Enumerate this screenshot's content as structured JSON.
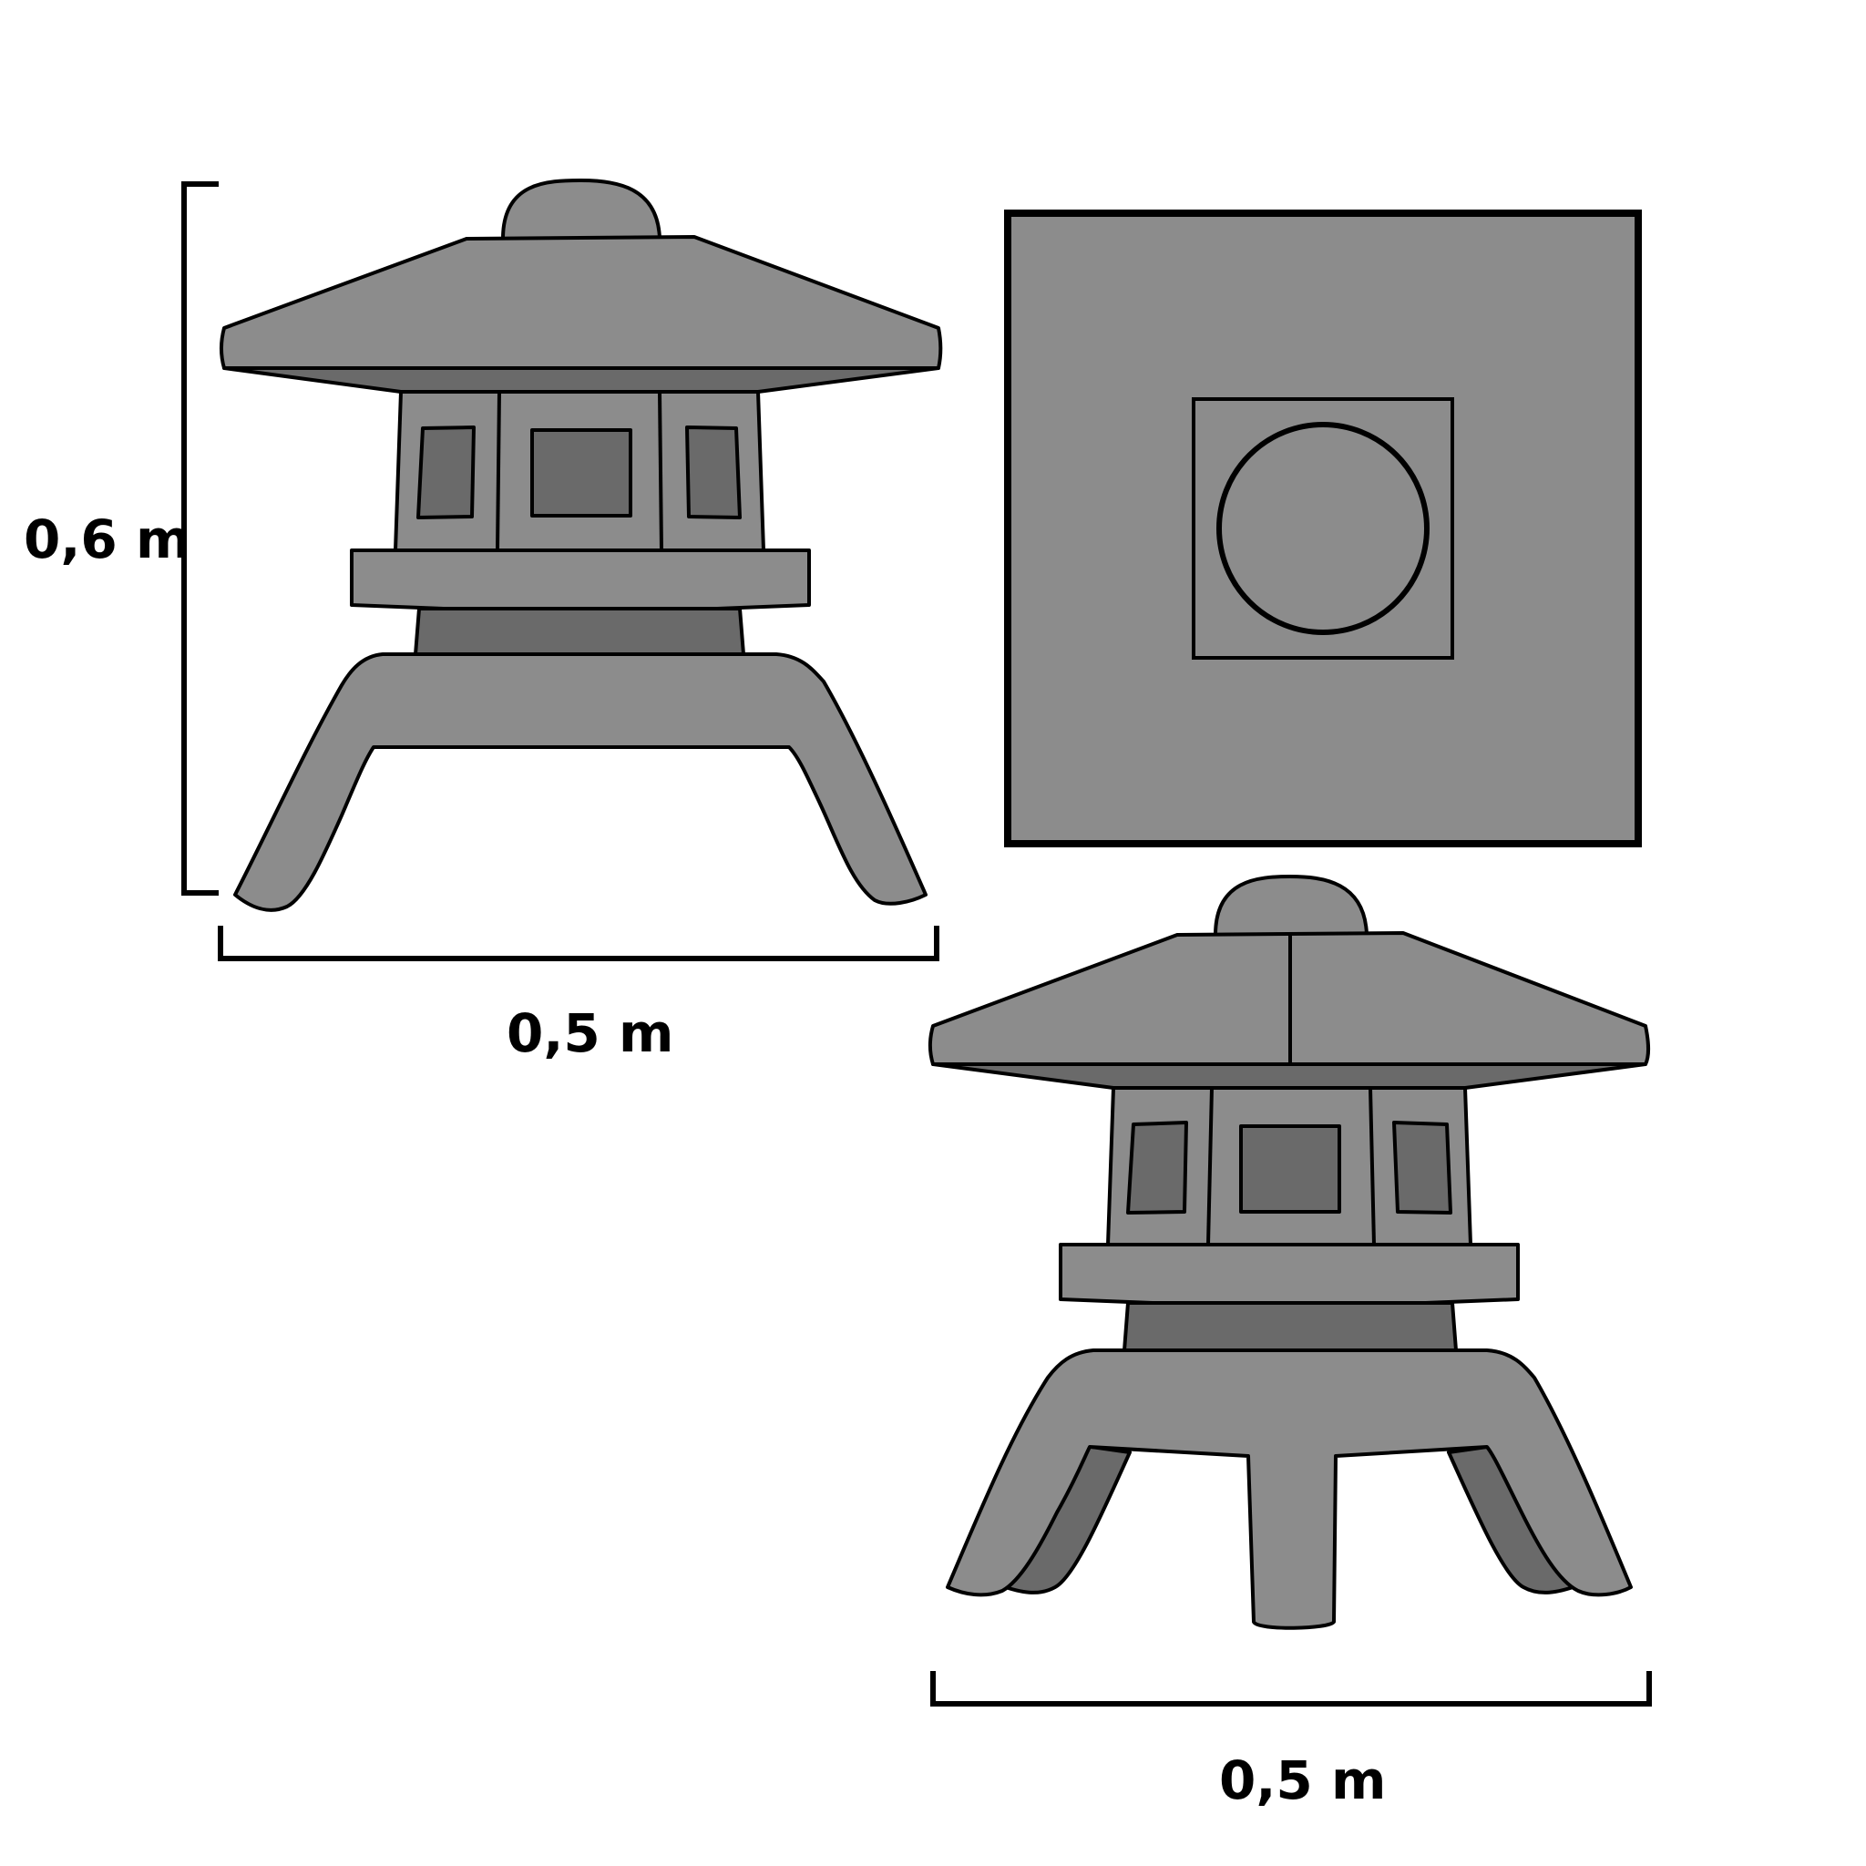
{
  "labels": {
    "front_height": "0,6 m",
    "front_width": "0,5 m",
    "perspective_width": "0,5 m"
  },
  "views": [
    "front-view",
    "top-view",
    "perspective-view"
  ],
  "colors": {
    "stone": "#8c8c8c",
    "stone_shadow": "#6a6a6a",
    "outline": "#000000",
    "background": "#ffffff"
  }
}
